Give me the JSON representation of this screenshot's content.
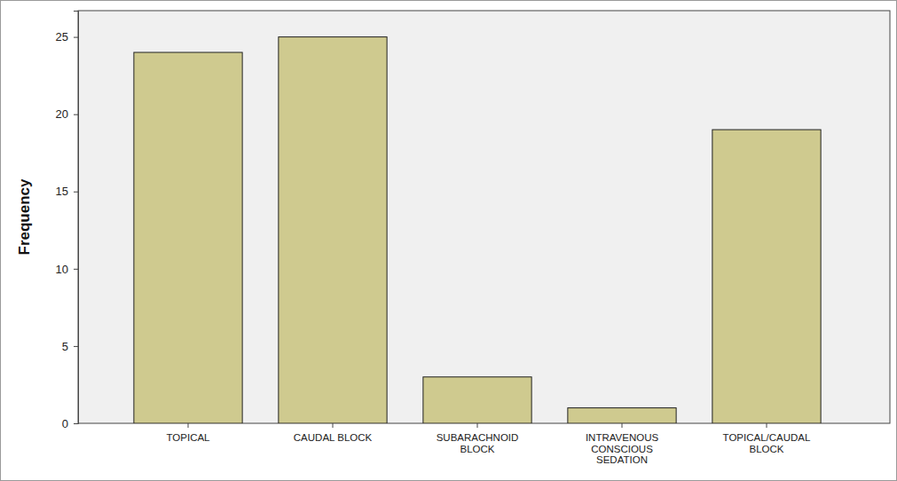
{
  "chart_data": {
    "type": "bar",
    "ylabel": "Frequency",
    "categories": [
      "TOPICAL",
      "CAUDAL BLOCK",
      "SUBARACHNOID BLOCK",
      "INTRAVENOUS CONSCIOUS SEDATION",
      "TOPICAL/CAUDAL BLOCK"
    ],
    "values": [
      24,
      25,
      3,
      1,
      19
    ],
    "color": "#cfca8f",
    "ylim": [
      0,
      26.7
    ],
    "yticks": [
      0,
      5,
      10,
      15,
      20,
      25
    ],
    "grid": false
  }
}
